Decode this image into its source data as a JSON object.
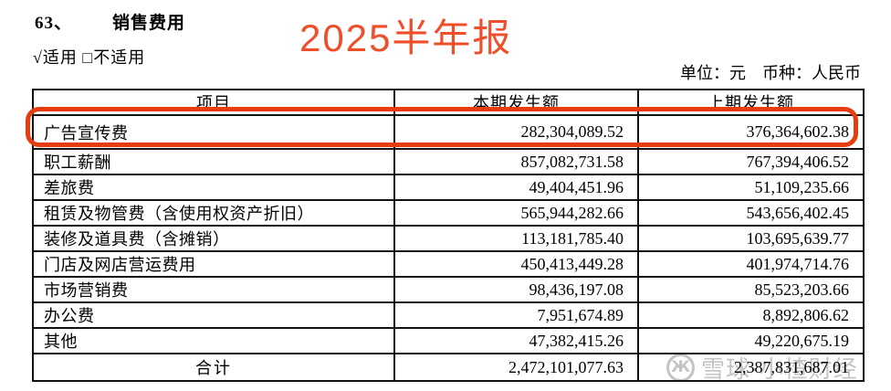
{
  "page": {
    "section_number": "63、",
    "section_title": "销售费用",
    "applicability": "√适用  □不适用",
    "annotation": "2025半年报",
    "annotation_color": "#ef4e2b",
    "unit_note": "单位：元　币种：人民币",
    "highlight_color": "#e63c10"
  },
  "table": {
    "headers": [
      "项目",
      "本期发生额",
      "上期发生额"
    ],
    "rows": [
      {
        "item": "广告宣传费",
        "current": "282,304,089.52",
        "prior": "376,364,602.38",
        "highlighted": true
      },
      {
        "item": "职工薪酬",
        "current": "857,082,731.58",
        "prior": "767,394,406.52"
      },
      {
        "item": "差旅费",
        "current": "49,404,451.96",
        "prior": "51,109,235.66"
      },
      {
        "item": "租赁及物管费（含使用权资产折旧）",
        "current": "565,944,282.66",
        "prior": "543,656,402.45"
      },
      {
        "item": "装修及道具费（含摊销）",
        "current": "113,181,785.40",
        "prior": "103,695,639.77"
      },
      {
        "item": "门店及网店营运费用",
        "current": "450,413,449.28",
        "prior": "401,974,714.76"
      },
      {
        "item": "市场营销费",
        "current": "98,436,197.08",
        "prior": "85,523,203.66"
      },
      {
        "item": "办公费",
        "current": "7,951,674.89",
        "prior": "8,892,806.62"
      },
      {
        "item": "其他",
        "current": "47,382,415.26",
        "prior": "49,220,675.19"
      },
      {
        "item": "合计",
        "current": "2,472,101,077.63",
        "prior": "2,387,831,687.01",
        "total": true
      }
    ]
  },
  "watermark": {
    "logo_glyph": "Ж",
    "text": "雪球·小楂财经",
    "color": "#c4c4c4"
  }
}
